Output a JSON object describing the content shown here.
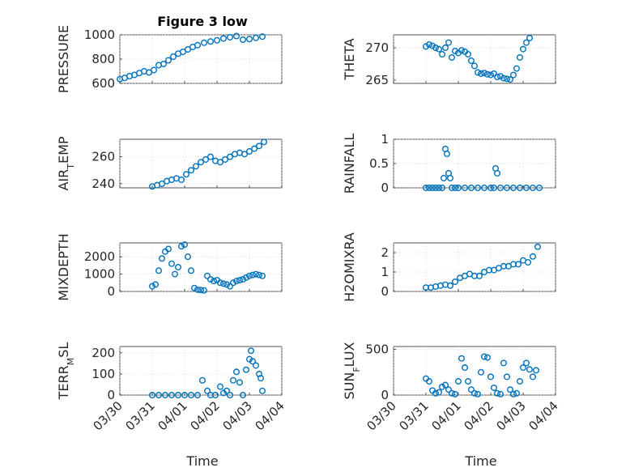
{
  "figure": {
    "title": "Figure 3 low",
    "marker_color": "#0072BD",
    "x_tick_labels": [
      "03/30",
      "03/31",
      "04/01",
      "04/02",
      "04/03",
      "04/04"
    ],
    "x_label": "Time"
  },
  "chart_data": [
    {
      "type": "scatter",
      "ylabel": "PRESSURE",
      "grid": true,
      "xlim": [
        0,
        5
      ],
      "ylim": [
        600,
        1000
      ],
      "yticks": [
        600,
        800,
        1000
      ],
      "x": [
        0.0,
        0.15,
        0.3,
        0.45,
        0.6,
        0.75,
        0.9,
        1.05,
        1.2,
        1.35,
        1.5,
        1.65,
        1.8,
        1.95,
        2.1,
        2.25,
        2.4,
        2.6,
        2.8,
        3.0,
        3.2,
        3.4,
        3.6,
        3.8,
        4.0,
        4.2,
        4.4
      ],
      "y": [
        635,
        645,
        660,
        670,
        685,
        700,
        690,
        710,
        750,
        760,
        790,
        820,
        845,
        860,
        880,
        900,
        915,
        935,
        945,
        955,
        970,
        980,
        990,
        960,
        965,
        975,
        985
      ],
      "xfirst": 1.05,
      "xstep_scale": 1
    },
    {
      "type": "scatter",
      "ylabel": "THETA",
      "grid": true,
      "xlim": [
        0,
        5
      ],
      "ylim": [
        264.5,
        272
      ],
      "yticks": [
        265,
        270
      ],
      "x": [
        1.0,
        1.1,
        1.2,
        1.3,
        1.4,
        1.5,
        1.6,
        1.7,
        1.8,
        1.9,
        2.0,
        2.1,
        2.2,
        2.3,
        2.4,
        2.5,
        2.6,
        2.7,
        2.8,
        2.9,
        3.0,
        3.1,
        3.2,
        3.3,
        3.4,
        3.5,
        3.6,
        3.7,
        3.8,
        3.9,
        4.0,
        4.1,
        4.2
      ],
      "y": [
        270.2,
        270.5,
        270.3,
        270.0,
        269.8,
        269.0,
        270.0,
        270.8,
        268.5,
        269.5,
        269.2,
        269.6,
        269.4,
        269.0,
        268.0,
        267.2,
        266.2,
        266.0,
        266.1,
        265.9,
        265.8,
        266.0,
        265.5,
        265.6,
        265.3,
        265.2,
        265.1,
        265.8,
        266.8,
        268.5,
        269.8,
        270.8,
        271.5
      ]
    },
    {
      "type": "scatter",
      "ylabel": "AIR_TEMP",
      "grid": true,
      "xlim": [
        0,
        5
      ],
      "ylim": [
        237,
        273
      ],
      "yticks": [
        240,
        260
      ],
      "x": [
        1.0,
        1.15,
        1.3,
        1.45,
        1.6,
        1.75,
        1.9,
        2.05,
        2.2,
        2.35,
        2.5,
        2.65,
        2.8,
        2.95,
        3.1,
        3.25,
        3.4,
        3.55,
        3.7,
        3.85,
        4.0,
        4.15,
        4.3,
        4.45
      ],
      "y": [
        238,
        239,
        240,
        242,
        243,
        244,
        243,
        247,
        250,
        253,
        256,
        258,
        260,
        257,
        256,
        258,
        260,
        262,
        263,
        262,
        264,
        266,
        268,
        271
      ]
    },
    {
      "type": "scatter",
      "ylabel": "RAINFALL",
      "grid": true,
      "xlim": [
        0,
        5
      ],
      "ylim": [
        0,
        1
      ],
      "yticks": [
        0,
        0.5,
        1
      ],
      "x": [
        1.0,
        1.1,
        1.2,
        1.3,
        1.4,
        1.5,
        1.55,
        1.6,
        1.65,
        1.7,
        1.75,
        1.8,
        1.9,
        2.0,
        2.2,
        2.4,
        2.6,
        2.8,
        3.0,
        3.1,
        3.15,
        3.2,
        3.3,
        3.5,
        3.7,
        3.9,
        4.1,
        4.3,
        4.5
      ],
      "y": [
        0,
        0,
        0,
        0,
        0,
        0,
        0.2,
        0.8,
        0.7,
        0.3,
        0.2,
        0,
        0,
        0,
        0,
        0,
        0,
        0,
        0,
        0,
        0.4,
        0.3,
        0,
        0,
        0,
        0,
        0,
        0,
        0
      ]
    },
    {
      "type": "scatter",
      "ylabel": "MIXDEPTH",
      "grid": true,
      "xlim": [
        0,
        5
      ],
      "ylim": [
        0,
        2800
      ],
      "yticks": [
        0,
        1000,
        2000
      ],
      "x": [
        1.0,
        1.1,
        1.2,
        1.3,
        1.4,
        1.5,
        1.6,
        1.7,
        1.8,
        1.9,
        2.0,
        2.1,
        2.2,
        2.3,
        2.4,
        2.5,
        2.6,
        2.7,
        2.8,
        2.9,
        3.0,
        3.1,
        3.2,
        3.3,
        3.4,
        3.5,
        3.6,
        3.7,
        3.8,
        3.9,
        4.0,
        4.1,
        4.2,
        4.3,
        4.4
      ],
      "y": [
        300,
        400,
        1200,
        1900,
        2300,
        2450,
        1600,
        1000,
        1400,
        2600,
        2700,
        2000,
        1200,
        200,
        100,
        80,
        60,
        900,
        700,
        600,
        650,
        500,
        450,
        400,
        300,
        500,
        600,
        650,
        700,
        800,
        900,
        950,
        1000,
        950,
        900
      ]
    },
    {
      "type": "scatter",
      "ylabel": "H2OMIXRA",
      "grid": true,
      "xlim": [
        0,
        5
      ],
      "ylim": [
        0,
        2.5
      ],
      "yticks": [
        0,
        1,
        2
      ],
      "x": [
        1.0,
        1.15,
        1.3,
        1.45,
        1.6,
        1.75,
        1.9,
        2.05,
        2.2,
        2.35,
        2.5,
        2.65,
        2.8,
        2.95,
        3.1,
        3.25,
        3.4,
        3.55,
        3.7,
        3.85,
        4.0,
        4.15,
        4.3,
        4.45
      ],
      "y": [
        0.2,
        0.2,
        0.25,
        0.3,
        0.35,
        0.3,
        0.5,
        0.7,
        0.8,
        0.9,
        0.8,
        0.8,
        1.0,
        1.1,
        1.1,
        1.2,
        1.3,
        1.3,
        1.4,
        1.4,
        1.6,
        1.5,
        1.8,
        2.3
      ]
    },
    {
      "type": "scatter",
      "ylabel": "TERR_MSL",
      "grid": true,
      "xlim": [
        0,
        5
      ],
      "ylim": [
        0,
        230
      ],
      "yticks": [
        0,
        100,
        200
      ],
      "x": [
        1.0,
        1.2,
        1.4,
        1.6,
        1.8,
        2.0,
        2.2,
        2.4,
        2.55,
        2.7,
        2.8,
        2.95,
        3.1,
        3.2,
        3.3,
        3.4,
        3.5,
        3.6,
        3.7,
        3.8,
        3.9,
        4.0,
        4.05,
        4.1,
        4.2,
        4.3,
        4.35,
        4.4
      ],
      "y": [
        0,
        0,
        0,
        0,
        0,
        0,
        0,
        0,
        70,
        20,
        0,
        0,
        40,
        10,
        20,
        0,
        70,
        110,
        60,
        0,
        120,
        170,
        210,
        160,
        140,
        100,
        80,
        20
      ]
    },
    {
      "type": "scatter",
      "ylabel": "SUN_FLUX",
      "grid": true,
      "xlim": [
        0,
        5
      ],
      "ylim": [
        0,
        530
      ],
      "yticks": [
        0,
        500
      ],
      "x": [
        1.0,
        1.1,
        1.2,
        1.3,
        1.4,
        1.5,
        1.6,
        1.7,
        1.8,
        1.9,
        2.0,
        2.1,
        2.2,
        2.3,
        2.4,
        2.5,
        2.6,
        2.7,
        2.8,
        2.9,
        3.0,
        3.1,
        3.2,
        3.3,
        3.4,
        3.5,
        3.6,
        3.7,
        3.8,
        3.9,
        4.0,
        4.1,
        4.2,
        4.3,
        4.4
      ],
      "y": [
        180,
        150,
        50,
        20,
        30,
        90,
        110,
        60,
        20,
        10,
        150,
        400,
        300,
        150,
        60,
        20,
        10,
        250,
        420,
        410,
        200,
        80,
        20,
        10,
        350,
        200,
        60,
        10,
        20,
        150,
        300,
        350,
        280,
        200,
        270
      ]
    }
  ]
}
